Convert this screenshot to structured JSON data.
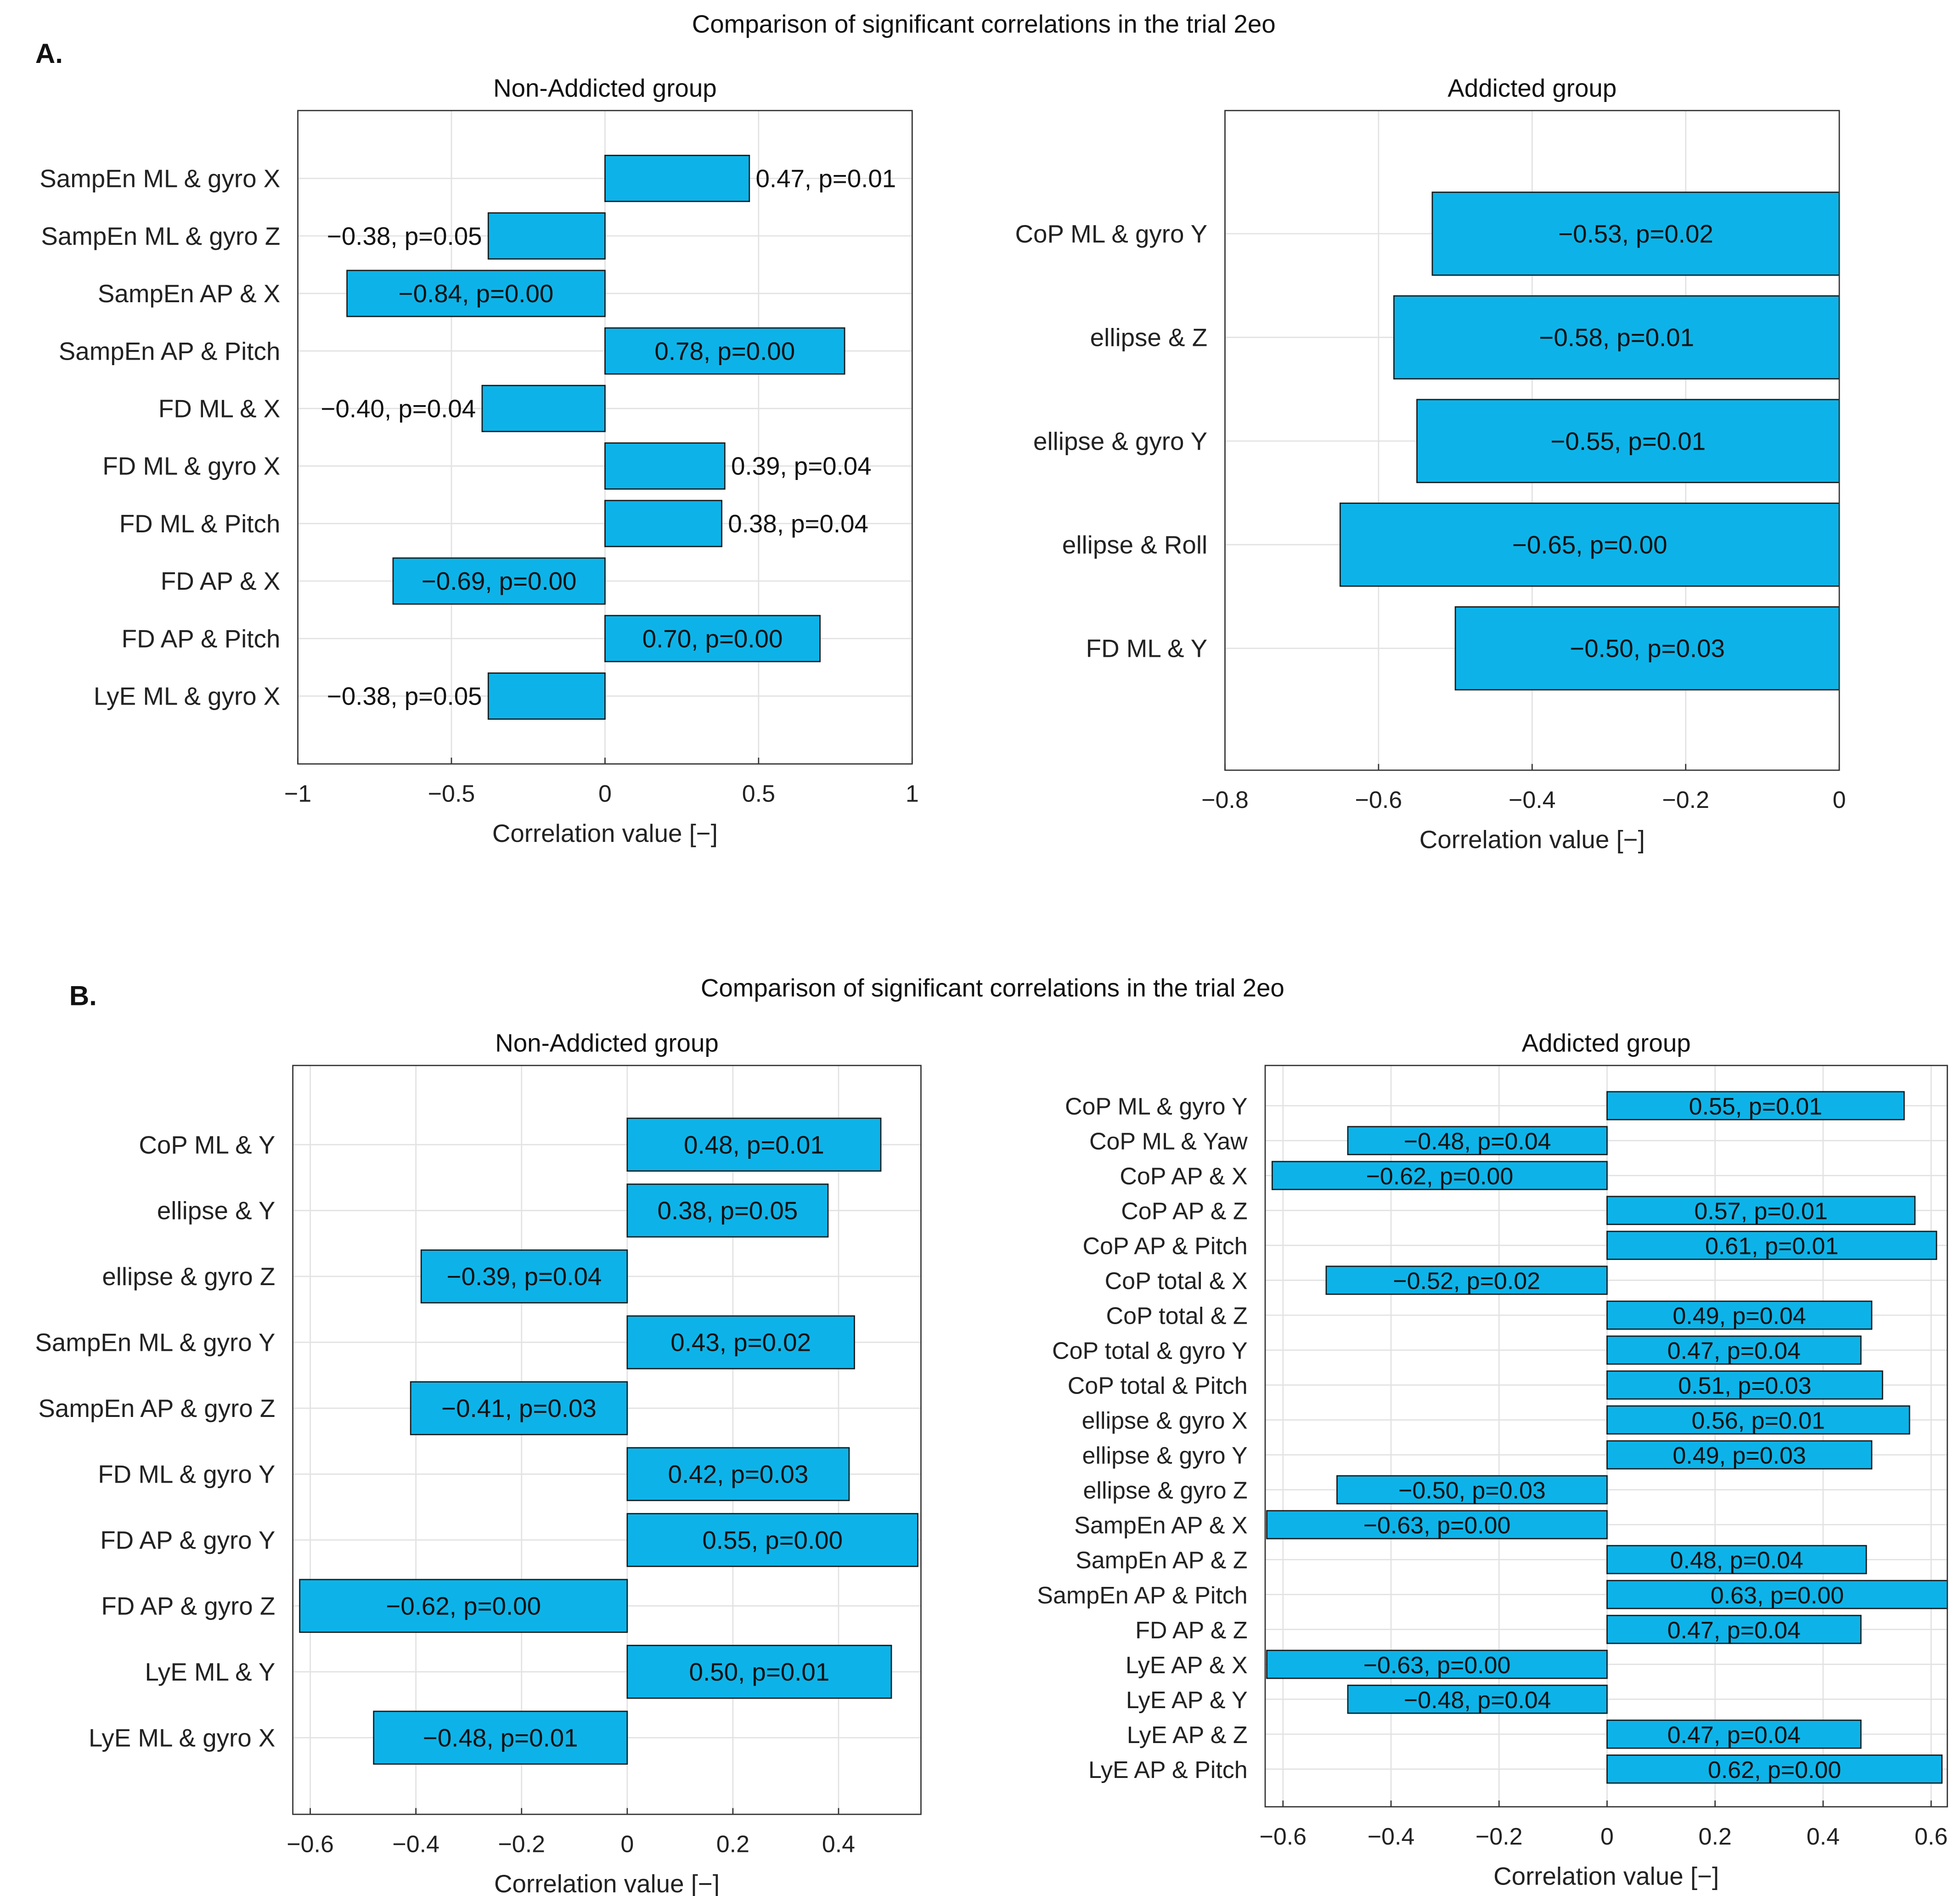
{
  "panel_a": {
    "letter": "A.",
    "title": "Comparison of significant correlations in the trial 2eo"
  },
  "panel_b": {
    "letter": "B.",
    "title": "Comparison of significant correlations in the trial 2eo"
  },
  "colors": {
    "bar": "#0db3e8",
    "edge": "#1a1a1a",
    "grid": "#e2e2e2"
  },
  "chart_data": [
    {
      "type": "bar",
      "orientation": "horizontal",
      "panel": "A",
      "title": "Non-Addicted group",
      "xlabel": "Correlation value [−]",
      "xlim": [
        -1,
        1
      ],
      "xticks": [
        -1,
        -0.5,
        0,
        0.5,
        1
      ],
      "xtick_labels": [
        "−1",
        "−0.5",
        "0",
        "0.5",
        "1"
      ],
      "categories": [
        "SampEn ML & gyro X",
        "SampEn ML & gyro Z",
        "SampEn AP & X",
        "SampEn AP & Pitch",
        "FD ML & X",
        "FD ML & gyro X",
        "FD ML & Pitch",
        "FD AP & X",
        "FD AP & Pitch",
        "LyE ML & gyro X"
      ],
      "values": [
        0.47,
        -0.38,
        -0.84,
        0.78,
        -0.4,
        0.39,
        0.38,
        -0.69,
        0.7,
        -0.38
      ],
      "labels": [
        "0.47, p=0.01",
        "−0.38, p=0.05",
        "−0.84, p=0.00",
        "0.78, p=0.00",
        "−0.40, p=0.04",
        "0.39, p=0.04",
        "0.38, p=0.04",
        "−0.69, p=0.00",
        "0.70, p=0.00",
        "−0.38, p=0.05"
      ]
    },
    {
      "type": "bar",
      "orientation": "horizontal",
      "panel": "A",
      "title": "Addicted group",
      "xlabel": "Correlation value [−]",
      "xlim": [
        -0.8,
        0
      ],
      "xticks": [
        -0.8,
        -0.6,
        -0.4,
        -0.2,
        0
      ],
      "xtick_labels": [
        "−0.8",
        "−0.6",
        "−0.4",
        "−0.2",
        "0"
      ],
      "categories": [
        "CoP ML & gyro Y",
        "ellipse & Z",
        "ellipse & gyro Y",
        "ellipse & Roll",
        "FD ML & Y"
      ],
      "values": [
        -0.53,
        -0.58,
        -0.55,
        -0.65,
        -0.5
      ],
      "labels": [
        "−0.53, p=0.02",
        "−0.58, p=0.01",
        "−0.55, p=0.01",
        "−0.65, p=0.00",
        "−0.50, p=0.03"
      ]
    },
    {
      "type": "bar",
      "orientation": "horizontal",
      "panel": "B",
      "title": "Non-Addicted group",
      "xlabel": "Correlation value [−]",
      "xlim": [
        -0.633,
        0.556
      ],
      "xticks": [
        -0.6,
        -0.4,
        -0.2,
        0,
        0.2,
        0.4
      ],
      "xtick_labels": [
        "−0.6",
        "−0.4",
        "−0.2",
        "0",
        "0.2",
        "0.4"
      ],
      "categories": [
        "CoP ML & Y",
        "ellipse & Y",
        "ellipse & gyro Z",
        "SampEn ML & gyro Y",
        "SampEn AP & gyro Z",
        "FD ML & gyro Y",
        "FD AP & gyro Y",
        "FD AP & gyro Z",
        "LyE ML & Y",
        "LyE ML & gyro X"
      ],
      "values": [
        0.48,
        0.38,
        -0.39,
        0.43,
        -0.41,
        0.42,
        0.55,
        -0.62,
        0.5,
        -0.48
      ],
      "labels": [
        "0.48, p=0.01",
        "0.38, p=0.05",
        "−0.39, p=0.04",
        "0.43, p=0.02",
        "−0.41, p=0.03",
        "0.42, p=0.03",
        "0.55, p=0.00",
        "−0.62, p=0.00",
        "0.50, p=0.01",
        "−0.48, p=0.01"
      ]
    },
    {
      "type": "bar",
      "orientation": "horizontal",
      "panel": "B",
      "title": "Addicted group",
      "xlabel": "Correlation value [−]",
      "xlim": [
        -0.633,
        0.63
      ],
      "xticks": [
        -0.6,
        -0.4,
        -0.2,
        0,
        0.2,
        0.4,
        0.6
      ],
      "xtick_labels": [
        "−0.6",
        "−0.4",
        "−0.2",
        "0",
        "0.2",
        "0.4",
        "0.6"
      ],
      "categories": [
        "CoP ML & gyro Y",
        "CoP ML & Yaw",
        "CoP AP & X",
        "CoP AP & Z",
        "CoP AP & Pitch",
        "CoP total & X",
        "CoP total & Z",
        "CoP total & gyro Y",
        "CoP total & Pitch",
        "ellipse & gyro X",
        "ellipse & gyro Y",
        "ellipse & gyro Z",
        "SampEn AP & X",
        "SampEn AP & Z",
        "SampEn AP & Pitch",
        "FD AP & Z",
        "LyE AP & X",
        "LyE AP & Y",
        "LyE AP & Z",
        "LyE AP & Pitch"
      ],
      "values": [
        0.55,
        -0.48,
        -0.62,
        0.57,
        0.61,
        -0.52,
        0.49,
        0.47,
        0.51,
        0.56,
        0.49,
        -0.5,
        -0.63,
        0.48,
        0.63,
        0.47,
        -0.63,
        -0.48,
        0.47,
        0.62
      ],
      "labels": [
        "0.55, p=0.01",
        "−0.48, p=0.04",
        "−0.62, p=0.00",
        "0.57, p=0.01",
        "0.61, p=0.01",
        "−0.52, p=0.02",
        "0.49, p=0.04",
        "0.47, p=0.04",
        "0.51, p=0.03",
        "0.56, p=0.01",
        "0.49, p=0.03",
        "−0.50, p=0.03",
        "−0.63, p=0.00",
        "0.48, p=0.04",
        "0.63, p=0.00",
        "0.47, p=0.04",
        "−0.63, p=0.00",
        "−0.48, p=0.04",
        "0.47, p=0.04",
        "0.62, p=0.00"
      ]
    }
  ]
}
